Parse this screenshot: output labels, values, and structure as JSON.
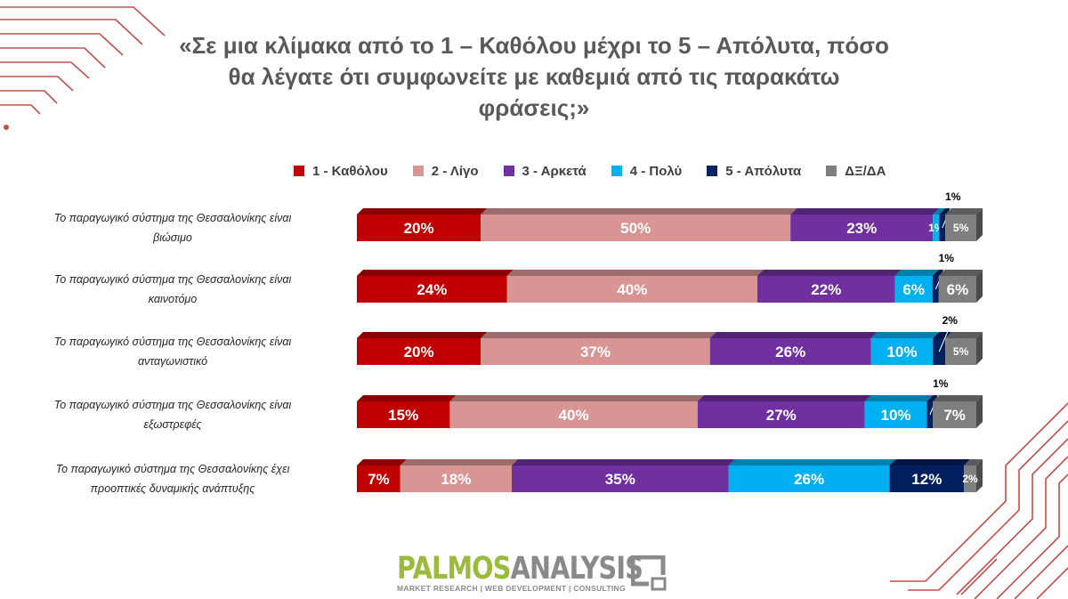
{
  "title": "«Σε μια κλίμακα από το 1 – Καθόλου μέχρι το 5 – Απόλυτα, πόσο θα λέγατε ότι συμφωνείτε με καθεμιά από τις παρακάτω φράσεις;»",
  "title_lines": [
    "«Σε μια κλίμακα από το 1 – Καθόλου μέχρι το 5 – Απόλυτα, πόσο",
    "θα λέγατε ότι συμφωνείτε με καθεμιά από τις παρακάτω",
    "φράσεις;»"
  ],
  "colors": {
    "title": "#595959",
    "deco": "#c0504d"
  },
  "logo": {
    "main_green": "PALMOS",
    "main_grey": "ANALYSIS",
    "sub": "MARKET RESEARCH | WEB DEVELOPMENT | CONSULTING"
  },
  "chart_data": {
    "type": "bar",
    "orientation": "horizontal",
    "stacked": true,
    "percent": true,
    "legend_position": "top",
    "grid": false,
    "categories": [
      "Το παραγωγικό σύστημα της Θεσσαλονίκης είναι βιώσιμο",
      "Το παραγωγικό σύστημα της Θεσσαλονίκης είναι καινοτόμο",
      "Το παραγωγικό σύστημα της Θεσσαλονίκης είναι ανταγωνιστικό",
      "Το παραγωγικό σύστημα της Θεσσαλονίκης είναι εξωστρεφές",
      "Το παραγωγικό σύστημα της Θεσσαλονίκης έχει προοπτικές δυναμικής ανάπτυξης"
    ],
    "category_lines": [
      [
        "Το παραγωγικό σύστημα της Θεσσαλονίκης είναι",
        "βιώσιμο"
      ],
      [
        "Το παραγωγικό σύστημα της Θεσσαλονίκης είναι",
        "καινοτόμο"
      ],
      [
        "Το παραγωγικό σύστημα της Θεσσαλονίκης είναι",
        "ανταγωνιστικό"
      ],
      [
        "Το παραγωγικό σύστημα της Θεσσαλονίκης είναι",
        "εξωστρεφές"
      ],
      [
        "Το παραγωγικό σύστημα της Θεσσαλονίκης έχει",
        "προοπτικές δυναμικής ανάπτυξης"
      ]
    ],
    "series": [
      {
        "name": "1 - Καθόλου",
        "color": "#c00000",
        "values": [
          20,
          24,
          20,
          15,
          7
        ]
      },
      {
        "name": "2 - Λίγο",
        "color": "#d99594",
        "values": [
          50,
          40,
          37,
          40,
          18
        ]
      },
      {
        "name": "3 - Αρκετά",
        "color": "#7030a0",
        "values": [
          23,
          22,
          26,
          27,
          35
        ]
      },
      {
        "name": "4 - Πολύ",
        "color": "#00b0f0",
        "values": [
          1,
          6,
          10,
          10,
          26
        ]
      },
      {
        "name": "5 - Απόλυτα",
        "color": "#002060",
        "values": [
          1,
          1,
          2,
          1,
          12
        ]
      },
      {
        "name": "ΔΞ/ΔΑ",
        "color": "#7f7f7f",
        "values": [
          5,
          6,
          5,
          7,
          2
        ]
      }
    ],
    "labels_outside_above": [
      {
        "row": 0,
        "series": 4,
        "text": "1%"
      },
      {
        "row": 1,
        "series": 4,
        "text": "1%"
      },
      {
        "row": 2,
        "series": 4,
        "text": "2%"
      },
      {
        "row": 3,
        "series": 4,
        "text": "1%"
      }
    ],
    "unit": "%"
  }
}
